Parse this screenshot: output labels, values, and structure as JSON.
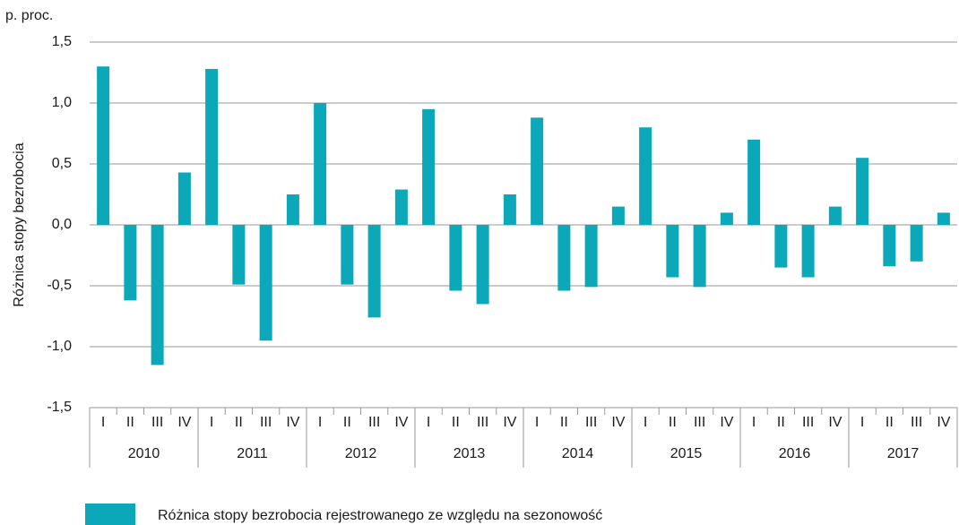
{
  "chart_data": {
    "type": "bar",
    "unit_label": "p. proc.",
    "y_label": "Różnica stopy bezrobocia",
    "categories": [
      "I",
      "II",
      "III",
      "IV",
      "I",
      "II",
      "III",
      "IV",
      "I",
      "II",
      "III",
      "IV",
      "I",
      "II",
      "III",
      "IV",
      "I",
      "II",
      "III",
      "IV",
      "I",
      "II",
      "III",
      "IV",
      "I",
      "II",
      "III",
      "IV",
      "I",
      "II",
      "III",
      "IV"
    ],
    "groups": [
      "2010",
      "2011",
      "2012",
      "2013",
      "2014",
      "2015",
      "2016",
      "2017"
    ],
    "series": [
      {
        "name": "Różnica stopy bezrobocia rejestrowanego ze względu na sezonowość",
        "color": "#0aa8b8",
        "values": [
          1.3,
          -0.62,
          -1.15,
          0.43,
          1.28,
          -0.49,
          -0.95,
          0.25,
          1.0,
          -0.49,
          -0.76,
          0.29,
          0.95,
          -0.54,
          -0.65,
          0.25,
          0.88,
          -0.54,
          -0.51,
          0.15,
          0.8,
          -0.43,
          -0.51,
          0.1,
          0.7,
          -0.35,
          -0.43,
          0.15,
          0.55,
          -0.34,
          -0.3,
          0.1
        ]
      }
    ],
    "ylim": [
      -1.5,
      1.5
    ],
    "yticks": [
      {
        "value": -1.5,
        "label": "-1,5"
      },
      {
        "value": -1.0,
        "label": "-1,0"
      },
      {
        "value": -0.5,
        "label": "-0,5"
      },
      {
        "value": 0,
        "label": "0,0"
      },
      {
        "value": 0.5,
        "label": "0,5"
      },
      {
        "value": 1.0,
        "label": "1,0"
      },
      {
        "value": 1.5,
        "label": "1,5"
      }
    ],
    "grid": true
  }
}
